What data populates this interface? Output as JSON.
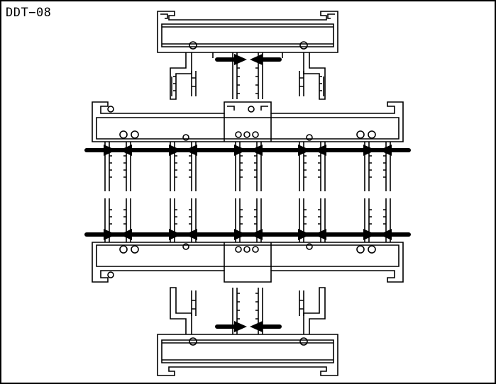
{
  "drawing": {
    "label": "DDT−08",
    "line_color": "#000000",
    "background": "#ffffff"
  }
}
